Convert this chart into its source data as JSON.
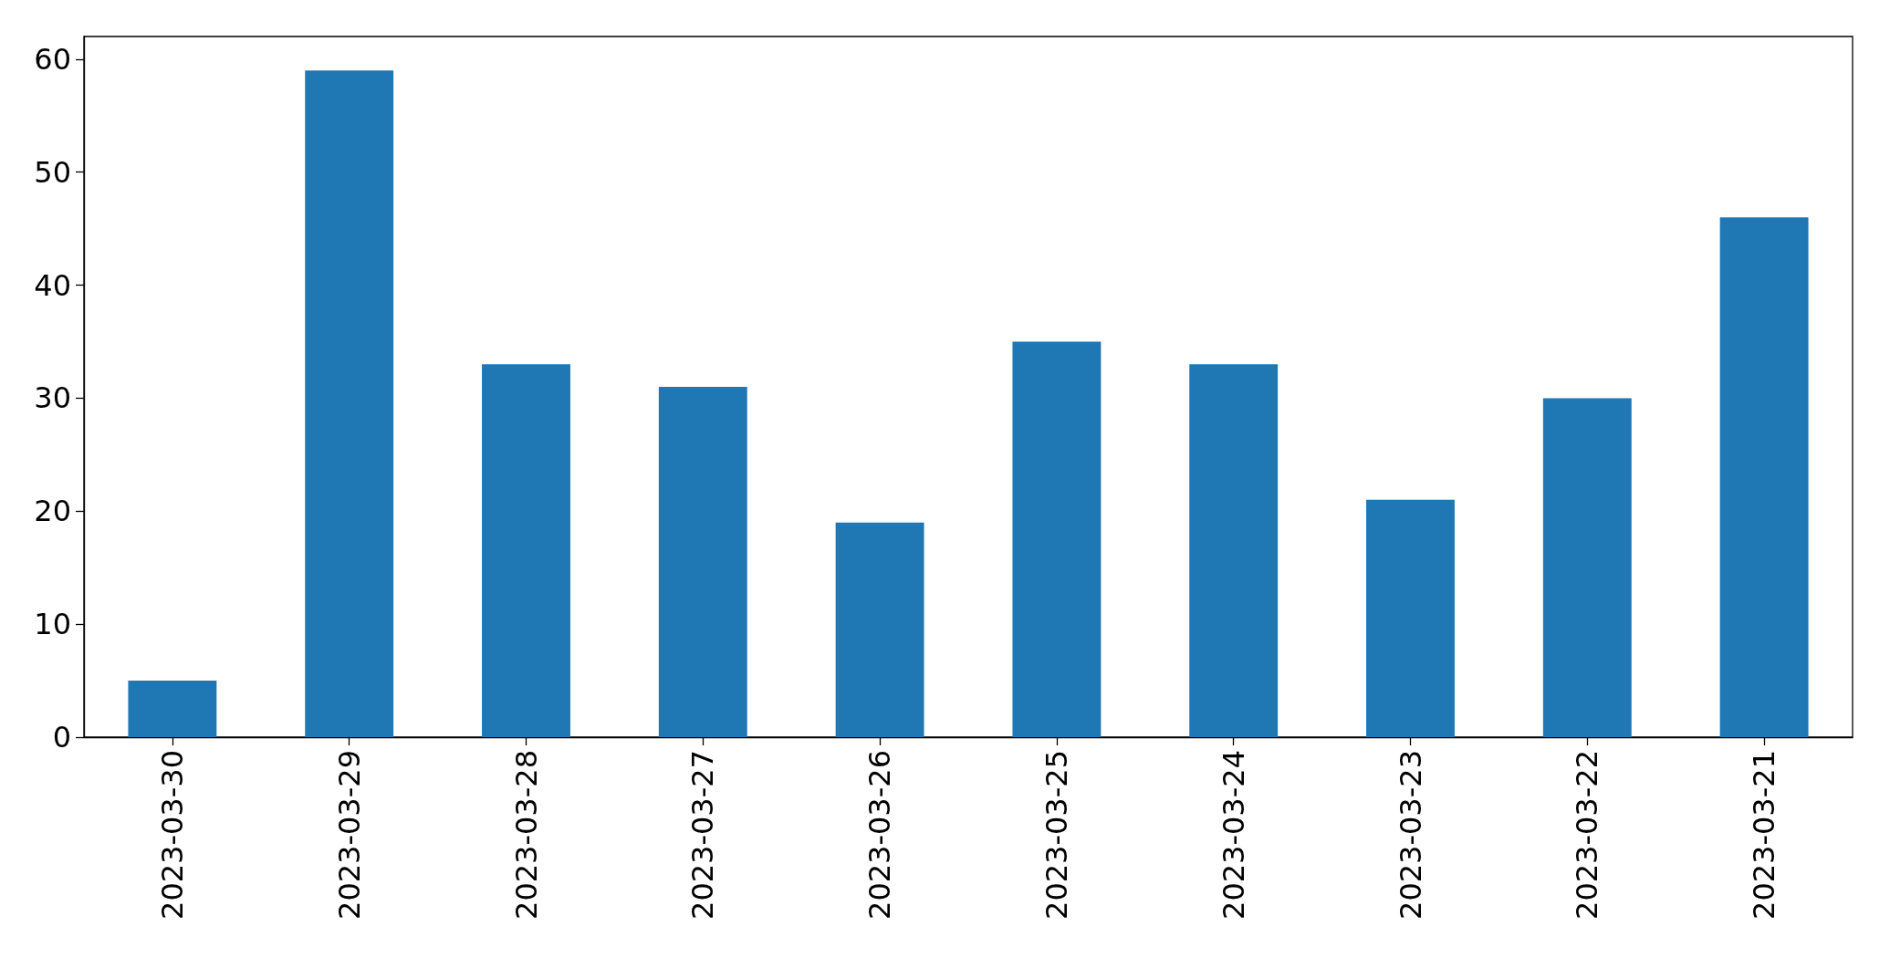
{
  "chart_data": {
    "type": "bar",
    "categories": [
      "2023-03-30",
      "2023-03-29",
      "2023-03-28",
      "2023-03-27",
      "2023-03-26",
      "2023-03-25",
      "2023-03-24",
      "2023-03-23",
      "2023-03-22",
      "2023-03-21"
    ],
    "values": [
      5,
      59,
      33,
      31,
      19,
      35,
      33,
      21,
      30,
      46
    ],
    "color": "#1f77b4",
    "ylim": [
      0,
      62
    ],
    "yticks": [
      0,
      10,
      20,
      30,
      40,
      50,
      60
    ],
    "grid": false
  }
}
